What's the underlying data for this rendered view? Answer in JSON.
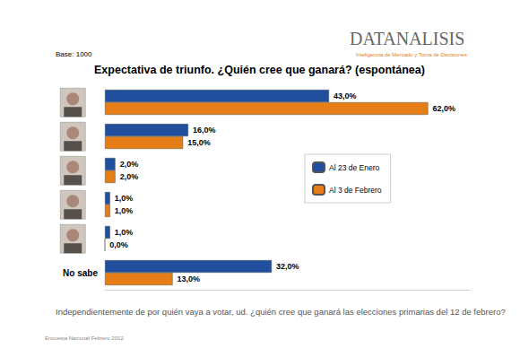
{
  "chart_data": {
    "type": "bar",
    "orientation": "horizontal",
    "title": "Expectativa de triunfo. ¿Quién cree que ganará? (espontánea)",
    "annotations": [
      "Base: 1000",
      "DATANALISIS",
      "Inteligencia de Mercado y Toma de Decisiones",
      "Independientemente de por quién vaya a votar, ud. ¿quién cree que ganará las elecciones primarias del 12 de febrero?",
      "Encuesta Nacional Febrero 2012"
    ],
    "categories": [
      null,
      null,
      null,
      null,
      null,
      "No sabe"
    ],
    "series": [
      {
        "name": "Al 23 de Enero",
        "color": "#1f4f9e",
        "values": [
          43,
          16,
          2,
          1,
          1,
          32
        ],
        "value_labels": [
          "43,0%",
          "16,0%",
          "2,0%",
          "1,0%",
          "1,0%",
          "32,0%"
        ]
      },
      {
        "name": "Al 3 de Febrero",
        "color": "#e67e17",
        "values": [
          62,
          15,
          2,
          1,
          0,
          13
        ],
        "value_labels": [
          "62,0%",
          "15,0%",
          "2,0%",
          "1,0%",
          "0,0%",
          "13,0%"
        ]
      }
    ],
    "xlim": [
      0,
      70
    ],
    "data_labels": true,
    "tick_labels": "y",
    "grid": false,
    "legend": "right"
  }
}
